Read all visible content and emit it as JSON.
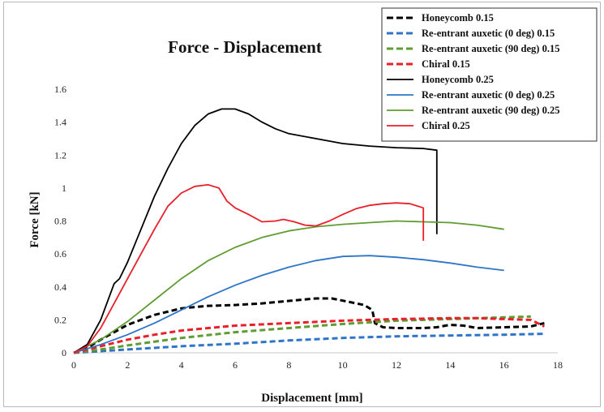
{
  "chart_data": {
    "type": "line",
    "title": "Force - Displacement",
    "xlabel": "Displacement [mm]",
    "ylabel": "Force [kN]",
    "xlim": [
      0,
      18
    ],
    "ylim": [
      0,
      1.6
    ],
    "x_ticks": [
      "0",
      "2",
      "4",
      "6",
      "8",
      "10",
      "12",
      "14",
      "16",
      "18"
    ],
    "y_ticks": [
      "0",
      "0.2",
      "0.4",
      "0.6",
      "0.8",
      "1",
      "1.2",
      "1.4",
      "1.6"
    ],
    "grid": false,
    "legend_position": "top-right",
    "series": [
      {
        "name": "Honeycomb 0.15",
        "color": "#000000",
        "dash": true,
        "points": [
          [
            0,
            0
          ],
          [
            0.5,
            0.03
          ],
          [
            1,
            0.08
          ],
          [
            2,
            0.17
          ],
          [
            3,
            0.23
          ],
          [
            4,
            0.27
          ],
          [
            5,
            0.285
          ],
          [
            6,
            0.29
          ],
          [
            7,
            0.3
          ],
          [
            8,
            0.315
          ],
          [
            9,
            0.33
          ],
          [
            9.6,
            0.33
          ],
          [
            10.2,
            0.31
          ],
          [
            10.8,
            0.29
          ],
          [
            11.1,
            0.26
          ],
          [
            11.2,
            0.18
          ],
          [
            11.5,
            0.155
          ],
          [
            12,
            0.15
          ],
          [
            13,
            0.15
          ],
          [
            13.5,
            0.155
          ],
          [
            14,
            0.17
          ],
          [
            14.5,
            0.165
          ],
          [
            15,
            0.15
          ],
          [
            16,
            0.155
          ],
          [
            17,
            0.16
          ],
          [
            17.5,
            0.18
          ]
        ]
      },
      {
        "name": "Re-entrant auxetic (0 deg) 0.15",
        "color": "#2e75c8",
        "dash": true,
        "points": [
          [
            0,
            0
          ],
          [
            2,
            0.02
          ],
          [
            4,
            0.04
          ],
          [
            6,
            0.055
          ],
          [
            8,
            0.075
          ],
          [
            10,
            0.09
          ],
          [
            12,
            0.1
          ],
          [
            14,
            0.105
          ],
          [
            16,
            0.11
          ],
          [
            17.5,
            0.115
          ]
        ]
      },
      {
        "name": "Re-entrant auxetic (90 deg) 0.15",
        "color": "#5f9c32",
        "dash": true,
        "points": [
          [
            0,
            0
          ],
          [
            1,
            0.02
          ],
          [
            2,
            0.045
          ],
          [
            4,
            0.09
          ],
          [
            6,
            0.125
          ],
          [
            8,
            0.15
          ],
          [
            10,
            0.175
          ],
          [
            12,
            0.195
          ],
          [
            14,
            0.205
          ],
          [
            16,
            0.215
          ],
          [
            17,
            0.22
          ]
        ]
      },
      {
        "name": "Chiral 0.15",
        "color": "#e8202a",
        "dash": true,
        "points": [
          [
            0,
            0
          ],
          [
            1,
            0.04
          ],
          [
            2,
            0.08
          ],
          [
            3,
            0.11
          ],
          [
            4,
            0.135
          ],
          [
            5,
            0.15
          ],
          [
            6,
            0.165
          ],
          [
            8,
            0.18
          ],
          [
            10,
            0.195
          ],
          [
            12,
            0.205
          ],
          [
            14,
            0.21
          ],
          [
            15,
            0.21
          ],
          [
            16,
            0.205
          ],
          [
            17,
            0.2
          ],
          [
            17.5,
            0.16
          ]
        ]
      },
      {
        "name": "Honeycomb 0.25",
        "color": "#000000",
        "dash": false,
        "points": [
          [
            0,
            0
          ],
          [
            0.5,
            0.05
          ],
          [
            1,
            0.2
          ],
          [
            1.5,
            0.42
          ],
          [
            1.7,
            0.45
          ],
          [
            2,
            0.55
          ],
          [
            2.5,
            0.75
          ],
          [
            3,
            0.95
          ],
          [
            3.5,
            1.12
          ],
          [
            4,
            1.27
          ],
          [
            4.5,
            1.38
          ],
          [
            5,
            1.45
          ],
          [
            5.5,
            1.48
          ],
          [
            6,
            1.48
          ],
          [
            6.5,
            1.45
          ],
          [
            7,
            1.4
          ],
          [
            7.5,
            1.36
          ],
          [
            8,
            1.33
          ],
          [
            9,
            1.3
          ],
          [
            10,
            1.27
          ],
          [
            11,
            1.255
          ],
          [
            12,
            1.245
          ],
          [
            13,
            1.24
          ],
          [
            13.5,
            1.23
          ],
          [
            13.5,
            0.72
          ]
        ]
      },
      {
        "name": "Re-entrant auxetic (0 deg) 0.25",
        "color": "#2e75c8",
        "dash": false,
        "points": [
          [
            0,
            0
          ],
          [
            1,
            0.05
          ],
          [
            2,
            0.11
          ],
          [
            3,
            0.18
          ],
          [
            4,
            0.26
          ],
          [
            5,
            0.34
          ],
          [
            6,
            0.41
          ],
          [
            7,
            0.47
          ],
          [
            8,
            0.52
          ],
          [
            9,
            0.56
          ],
          [
            10,
            0.585
          ],
          [
            11,
            0.59
          ],
          [
            12,
            0.58
          ],
          [
            13,
            0.565
          ],
          [
            14,
            0.545
          ],
          [
            15,
            0.52
          ],
          [
            16,
            0.5
          ]
        ]
      },
      {
        "name": "Re-entrant auxetic (90 deg) 0.25",
        "color": "#5f9c32",
        "dash": false,
        "points": [
          [
            0,
            0
          ],
          [
            1,
            0.08
          ],
          [
            2,
            0.19
          ],
          [
            3,
            0.32
          ],
          [
            4,
            0.45
          ],
          [
            5,
            0.56
          ],
          [
            6,
            0.64
          ],
          [
            7,
            0.7
          ],
          [
            8,
            0.74
          ],
          [
            9,
            0.765
          ],
          [
            10,
            0.78
          ],
          [
            11,
            0.79
          ],
          [
            12,
            0.8
          ],
          [
            13,
            0.795
          ],
          [
            14,
            0.79
          ],
          [
            15,
            0.775
          ],
          [
            16,
            0.75
          ]
        ]
      },
      {
        "name": "Chiral 0.25",
        "color": "#e8202a",
        "dash": false,
        "points": [
          [
            0,
            0
          ],
          [
            0.5,
            0.04
          ],
          [
            1,
            0.15
          ],
          [
            1.5,
            0.3
          ],
          [
            2,
            0.45
          ],
          [
            2.5,
            0.6
          ],
          [
            3,
            0.75
          ],
          [
            3.5,
            0.89
          ],
          [
            4,
            0.97
          ],
          [
            4.5,
            1.01
          ],
          [
            5,
            1.02
          ],
          [
            5.4,
            1.0
          ],
          [
            5.7,
            0.92
          ],
          [
            6,
            0.88
          ],
          [
            6.5,
            0.84
          ],
          [
            7,
            0.795
          ],
          [
            7.5,
            0.8
          ],
          [
            7.8,
            0.81
          ],
          [
            8.2,
            0.795
          ],
          [
            8.6,
            0.775
          ],
          [
            9,
            0.77
          ],
          [
            9.5,
            0.8
          ],
          [
            10,
            0.84
          ],
          [
            10.5,
            0.875
          ],
          [
            11,
            0.895
          ],
          [
            11.5,
            0.905
          ],
          [
            12,
            0.91
          ],
          [
            12.5,
            0.905
          ],
          [
            13,
            0.88
          ],
          [
            13,
            0.68
          ]
        ]
      }
    ]
  }
}
